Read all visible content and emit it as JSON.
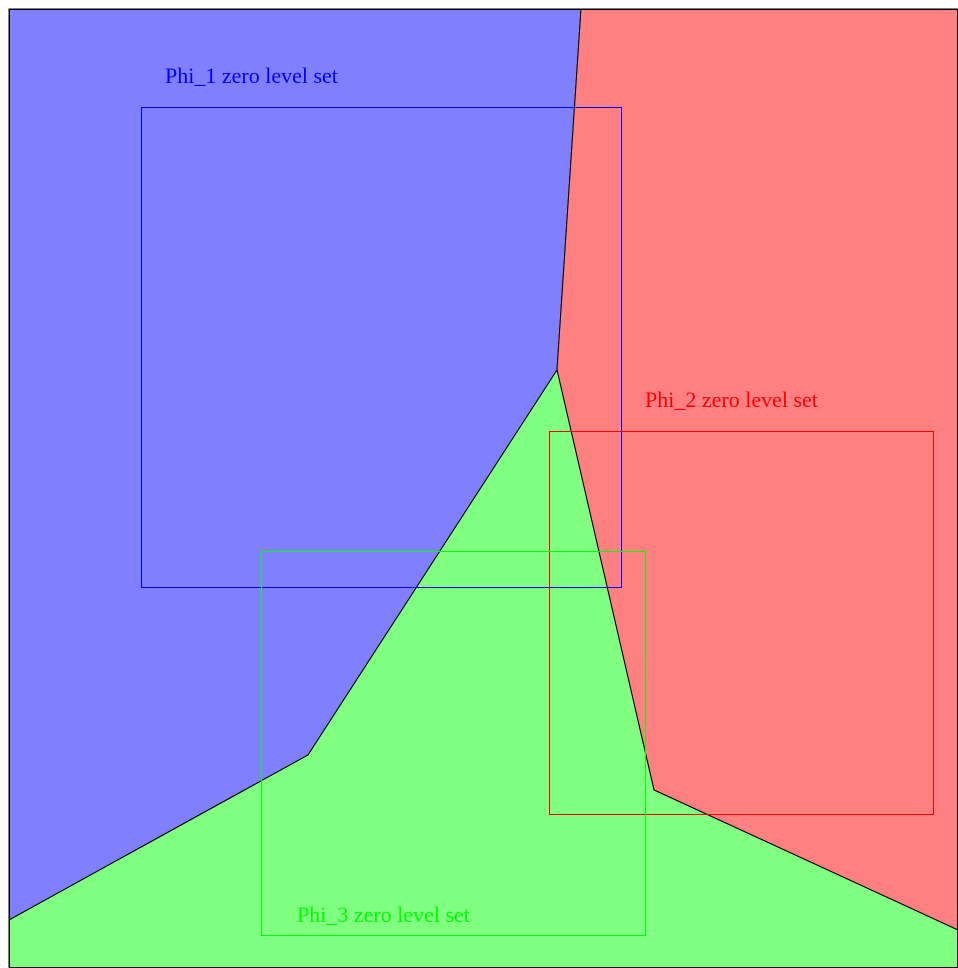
{
  "level_sets": [
    {
      "label": "Phi_1 zero level set"
    },
    {
      "label": "Phi_2 zero level set"
    },
    {
      "label": "Phi_3 zero level set"
    }
  ]
}
